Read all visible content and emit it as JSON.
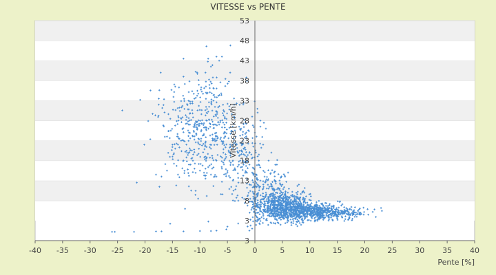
{
  "chart_data": {
    "type": "scatter",
    "title": "VITESSE vs PENTE",
    "xlabel": "Pente [%]",
    "ylabel": "Vitesse [km/h]",
    "xlim": [
      -40,
      40
    ],
    "ylim": [
      -2,
      53
    ],
    "x_ticks": [
      "-40",
      "-35",
      "-30",
      "-25",
      "-20",
      "-15",
      "-10",
      "-5",
      "0",
      "5",
      "10",
      "15",
      "20",
      "25",
      "30",
      "35",
      "40"
    ],
    "y_ticks": [
      "3",
      "3",
      "8",
      "13",
      "18",
      "23",
      "28",
      "33",
      "38",
      "43",
      "48",
      "53"
    ],
    "grid": true,
    "legend": "none",
    "series": [
      {
        "color": "#4a8fd4",
        "points": [
          [
            -26,
            0.2
          ],
          [
            -25.5,
            0.2
          ],
          [
            -22,
            0.2
          ],
          [
            -18,
            0.3
          ],
          [
            -17,
            0.3
          ],
          [
            -13,
            0.3
          ],
          [
            -10,
            0.4
          ],
          [
            -8,
            0.4
          ],
          [
            -7,
            0.5
          ],
          [
            -5,
            1.5
          ],
          [
            -5.2,
            0.8
          ],
          [
            -1,
            0.5
          ],
          [
            -0.5,
            1
          ],
          [
            -21.5,
            12.5
          ],
          [
            -18,
            14.5
          ],
          [
            -17,
            14
          ],
          [
            -16,
            15.5
          ],
          [
            -14,
            14.5
          ],
          [
            -12,
            14.2
          ],
          [
            -9,
            13.5
          ],
          [
            -7,
            14
          ],
          [
            -6,
            12.7
          ],
          [
            -4,
            13
          ],
          [
            -3,
            12.5
          ],
          [
            -17.5,
            32
          ],
          [
            -17.5,
            33.5
          ],
          [
            -14.5,
            36.5
          ],
          [
            -13,
            39
          ],
          [
            -10.5,
            40
          ],
          [
            -9,
            40
          ],
          [
            -8,
            41.5
          ],
          [
            -8.5,
            43.5
          ],
          [
            -7,
            44
          ],
          [
            -6,
            44
          ],
          [
            -6.5,
            43
          ],
          [
            -4.5,
            40
          ],
          [
            -16,
            24
          ],
          [
            -15,
            22
          ],
          [
            -14.5,
            21
          ],
          [
            -14,
            22
          ],
          [
            -13,
            23
          ],
          [
            -12,
            25
          ],
          [
            -11,
            27
          ],
          [
            -10,
            22
          ],
          [
            -9,
            19
          ],
          [
            -8,
            21
          ],
          [
            -7,
            18
          ],
          [
            -6,
            16
          ],
          [
            -5,
            15
          ],
          [
            -4,
            18
          ],
          [
            -3,
            20
          ],
          [
            -15,
            19
          ],
          [
            -13,
            18
          ],
          [
            -12,
            17
          ],
          [
            -11,
            16
          ],
          [
            -10,
            15.5
          ],
          [
            -9,
            16
          ],
          [
            -8,
            14.5
          ],
          [
            -5.5,
            25
          ],
          [
            -4.5,
            22
          ],
          [
            -3.5,
            24
          ],
          [
            -2.5,
            26
          ],
          [
            -2,
            21
          ],
          [
            -1.5,
            19
          ],
          [
            -1,
            17
          ],
          [
            -0.5,
            15
          ],
          [
            0,
            14
          ],
          [
            0.5,
            12
          ],
          [
            1,
            13
          ],
          [
            1.5,
            11
          ],
          [
            2,
            10
          ],
          [
            2.5,
            11
          ],
          [
            3,
            12
          ],
          [
            3.5,
            9
          ],
          [
            4,
            10
          ],
          [
            4.5,
            11
          ],
          [
            5,
            12
          ],
          [
            6,
            10
          ],
          [
            7,
            9
          ],
          [
            8,
            12
          ],
          [
            9,
            10
          ],
          [
            0.3,
            24
          ],
          [
            1,
            28
          ],
          [
            1.5,
            22
          ],
          [
            2,
            26
          ],
          [
            2.5,
            18
          ],
          [
            3,
            20
          ],
          [
            3.5,
            15
          ],
          [
            4,
            17
          ],
          [
            4.5,
            13
          ],
          [
            5.5,
            14
          ],
          [
            0,
            25
          ],
          [
            0.5,
            30
          ],
          [
            1,
            26.5
          ],
          [
            -0.5,
            29
          ]
        ],
        "clusters": [
          {
            "cx": -10,
            "cy": 27,
            "sx": 3.5,
            "sy": 7.5,
            "n": 380
          },
          {
            "cx": -5,
            "cy": 22,
            "sx": 2.5,
            "sy": 6,
            "n": 140
          },
          {
            "cx": -1.5,
            "cy": 17,
            "sx": 1.5,
            "sy": 5,
            "n": 80
          },
          {
            "cx": 5,
            "cy": 6.5,
            "sx": 2.5,
            "sy": 2.0,
            "n": 700
          },
          {
            "cx": 10,
            "cy": 5.3,
            "sx": 3.0,
            "sy": 1.0,
            "n": 520
          },
          {
            "cx": 16,
            "cy": 4.8,
            "sx": 2.5,
            "sy": 0.8,
            "n": 140
          },
          {
            "cx": 3,
            "cy": 11,
            "sx": 1.5,
            "sy": 3,
            "n": 90
          },
          {
            "cx": 0,
            "cy": 9,
            "sx": 0.6,
            "sy": 5,
            "n": 60
          }
        ]
      }
    ]
  },
  "colors": {
    "background": "#edf2c9",
    "plot_area": "#ffffff",
    "band": "#f0f0f0",
    "axis": "#666666",
    "marker": "#4a8fd4"
  }
}
